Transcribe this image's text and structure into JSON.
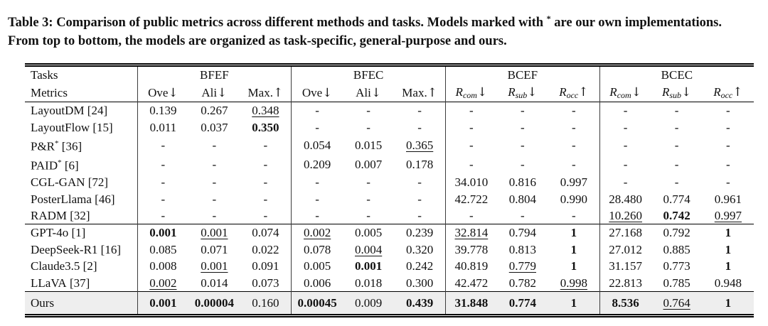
{
  "caption": {
    "line1_pre": "Table 3: Comparison of public metrics across different methods and tasks. Models marked with ",
    "star": "*",
    "line1_post": " are our own implementations.",
    "line2": "From top to bottom, the models are organized as task-specific, general-purpose and ours."
  },
  "table": {
    "corner": {
      "line1": "Tasks",
      "line2": "Metrics"
    },
    "groups": [
      {
        "name": "BFEF",
        "metrics": [
          {
            "text": "Ove",
            "sub": "",
            "arrow": "↓"
          },
          {
            "text": "Ali",
            "sub": "",
            "arrow": "↓"
          },
          {
            "text": "Max.",
            "sub": "",
            "arrow": "↑"
          }
        ]
      },
      {
        "name": "BFEC",
        "metrics": [
          {
            "text": "Ove",
            "sub": "",
            "arrow": "↓"
          },
          {
            "text": "Ali",
            "sub": "",
            "arrow": "↓"
          },
          {
            "text": "Max.",
            "sub": "",
            "arrow": "↑"
          }
        ]
      },
      {
        "name": "BCEF",
        "metrics": [
          {
            "text": "R",
            "sub": "com",
            "arrow": "↓"
          },
          {
            "text": "R",
            "sub": "sub",
            "arrow": "↓"
          },
          {
            "text": "R",
            "sub": "occ",
            "arrow": "↑"
          }
        ]
      },
      {
        "name": "BCEC",
        "metrics": [
          {
            "text": "R",
            "sub": "com",
            "arrow": "↓"
          },
          {
            "text": "R",
            "sub": "sub",
            "arrow": "↓"
          },
          {
            "text": "R",
            "sub": "occ",
            "arrow": "↑"
          }
        ]
      }
    ],
    "row_groups": [
      {
        "name": "task-specific",
        "rule_above": false,
        "highlight": false,
        "rows": [
          {
            "name": "LayoutDM",
            "star": false,
            "cite": "[24]",
            "cells": [
              [
                "0.139",
                "n"
              ],
              [
                "0.267",
                "n"
              ],
              [
                "0.348",
                "u"
              ],
              [
                "-",
                "n"
              ],
              [
                "-",
                "n"
              ],
              [
                "-",
                "n"
              ],
              [
                "-",
                "n"
              ],
              [
                "-",
                "n"
              ],
              [
                "-",
                "n"
              ],
              [
                "-",
                "n"
              ],
              [
                "-",
                "n"
              ],
              [
                "-",
                "n"
              ]
            ]
          },
          {
            "name": "LayoutFlow",
            "star": false,
            "cite": "[15]",
            "cells": [
              [
                "0.011",
                "n"
              ],
              [
                "0.037",
                "n"
              ],
              [
                "0.350",
                "b"
              ],
              [
                "-",
                "n"
              ],
              [
                "-",
                "n"
              ],
              [
                "-",
                "n"
              ],
              [
                "-",
                "n"
              ],
              [
                "-",
                "n"
              ],
              [
                "-",
                "n"
              ],
              [
                "-",
                "n"
              ],
              [
                "-",
                "n"
              ],
              [
                "-",
                "n"
              ]
            ]
          },
          {
            "name": "P&R",
            "star": true,
            "cite": "[36]",
            "cells": [
              [
                "-",
                "n"
              ],
              [
                "-",
                "n"
              ],
              [
                "-",
                "n"
              ],
              [
                "0.054",
                "n"
              ],
              [
                "0.015",
                "n"
              ],
              [
                "0.365",
                "u"
              ],
              [
                "-",
                "n"
              ],
              [
                "-",
                "n"
              ],
              [
                "-",
                "n"
              ],
              [
                "-",
                "n"
              ],
              [
                "-",
                "n"
              ],
              [
                "-",
                "n"
              ]
            ]
          },
          {
            "name": "PAID",
            "star": true,
            "cite": "[6]",
            "cells": [
              [
                "-",
                "n"
              ],
              [
                "-",
                "n"
              ],
              [
                "-",
                "n"
              ],
              [
                "0.209",
                "n"
              ],
              [
                "0.007",
                "n"
              ],
              [
                "0.178",
                "n"
              ],
              [
                "-",
                "n"
              ],
              [
                "-",
                "n"
              ],
              [
                "-",
                "n"
              ],
              [
                "-",
                "n"
              ],
              [
                "-",
                "n"
              ],
              [
                "-",
                "n"
              ]
            ]
          },
          {
            "name": "CGL-GAN",
            "star": false,
            "cite": "[72]",
            "cells": [
              [
                "-",
                "n"
              ],
              [
                "-",
                "n"
              ],
              [
                "-",
                "n"
              ],
              [
                "-",
                "n"
              ],
              [
                "-",
                "n"
              ],
              [
                "-",
                "n"
              ],
              [
                "34.010",
                "n"
              ],
              [
                "0.816",
                "n"
              ],
              [
                "0.997",
                "n"
              ],
              [
                "-",
                "n"
              ],
              [
                "-",
                "n"
              ],
              [
                "-",
                "n"
              ]
            ]
          },
          {
            "name": "PosterLlama",
            "star": false,
            "cite": "[46]",
            "cells": [
              [
                "-",
                "n"
              ],
              [
                "-",
                "n"
              ],
              [
                "-",
                "n"
              ],
              [
                "-",
                "n"
              ],
              [
                "-",
                "n"
              ],
              [
                "-",
                "n"
              ],
              [
                "42.722",
                "n"
              ],
              [
                "0.804",
                "n"
              ],
              [
                "0.990",
                "n"
              ],
              [
                "28.480",
                "n"
              ],
              [
                "0.774",
                "n"
              ],
              [
                "0.961",
                "n"
              ]
            ]
          },
          {
            "name": "RADM",
            "star": false,
            "cite": "[32]",
            "cells": [
              [
                "-",
                "n"
              ],
              [
                "-",
                "n"
              ],
              [
                "-",
                "n"
              ],
              [
                "-",
                "n"
              ],
              [
                "-",
                "n"
              ],
              [
                "-",
                "n"
              ],
              [
                "-",
                "n"
              ],
              [
                "-",
                "n"
              ],
              [
                "-",
                "n"
              ],
              [
                "10.260",
                "u"
              ],
              [
                "0.742",
                "b"
              ],
              [
                "0.997",
                "u"
              ]
            ]
          }
        ]
      },
      {
        "name": "general-purpose",
        "rule_above": true,
        "highlight": false,
        "rows": [
          {
            "name": "GPT-4o",
            "star": false,
            "cite": "[1]",
            "cells": [
              [
                "0.001",
                "b"
              ],
              [
                "0.001",
                "u"
              ],
              [
                "0.074",
                "n"
              ],
              [
                "0.002",
                "u"
              ],
              [
                "0.005",
                "n"
              ],
              [
                "0.239",
                "n"
              ],
              [
                "32.814",
                "u"
              ],
              [
                "0.794",
                "n"
              ],
              [
                "1",
                "b"
              ],
              [
                "27.168",
                "n"
              ],
              [
                "0.792",
                "n"
              ],
              [
                "1",
                "b"
              ]
            ]
          },
          {
            "name": "DeepSeek-R1",
            "star": false,
            "cite": "[16]",
            "cells": [
              [
                "0.085",
                "n"
              ],
              [
                "0.071",
                "n"
              ],
              [
                "0.022",
                "n"
              ],
              [
                "0.078",
                "n"
              ],
              [
                "0.004",
                "u"
              ],
              [
                "0.320",
                "n"
              ],
              [
                "39.778",
                "n"
              ],
              [
                "0.813",
                "n"
              ],
              [
                "1",
                "b"
              ],
              [
                "27.012",
                "n"
              ],
              [
                "0.885",
                "n"
              ],
              [
                "1",
                "b"
              ]
            ]
          },
          {
            "name": "Claude3.5",
            "star": false,
            "cite": "[2]",
            "cells": [
              [
                "0.008",
                "n"
              ],
              [
                "0.001",
                "u"
              ],
              [
                "0.091",
                "n"
              ],
              [
                "0.005",
                "n"
              ],
              [
                "0.001",
                "b"
              ],
              [
                "0.242",
                "n"
              ],
              [
                "40.819",
                "n"
              ],
              [
                "0.779",
                "u"
              ],
              [
                "1",
                "b"
              ],
              [
                "31.157",
                "n"
              ],
              [
                "0.773",
                "n"
              ],
              [
                "1",
                "b"
              ]
            ]
          },
          {
            "name": "LLaVA",
            "star": false,
            "cite": "[37]",
            "cells": [
              [
                "0.002",
                "u"
              ],
              [
                "0.014",
                "n"
              ],
              [
                "0.073",
                "n"
              ],
              [
                "0.006",
                "n"
              ],
              [
                "0.018",
                "n"
              ],
              [
                "0.300",
                "n"
              ],
              [
                "42.472",
                "n"
              ],
              [
                "0.782",
                "n"
              ],
              [
                "0.998",
                "u"
              ],
              [
                "22.813",
                "n"
              ],
              [
                "0.785",
                "n"
              ],
              [
                "0.948",
                "n"
              ]
            ]
          }
        ]
      },
      {
        "name": "ours",
        "rule_above": true,
        "highlight": true,
        "rows": [
          {
            "name": "Ours",
            "star": false,
            "cite": "",
            "cells": [
              [
                "0.001",
                "b"
              ],
              [
                "0.00004",
                "b"
              ],
              [
                "0.160",
                "n"
              ],
              [
                "0.00045",
                "b"
              ],
              [
                "0.009",
                "n"
              ],
              [
                "0.439",
                "b"
              ],
              [
                "31.848",
                "b"
              ],
              [
                "0.774",
                "b"
              ],
              [
                "1",
                "b"
              ],
              [
                "8.536",
                "b"
              ],
              [
                "0.764",
                "u"
              ],
              [
                "1",
                "b"
              ]
            ]
          }
        ]
      }
    ],
    "colors": {
      "highlight_bg": "#eeeeee",
      "rule": "#000000",
      "vertical_rule": "#3c3c3c"
    }
  }
}
